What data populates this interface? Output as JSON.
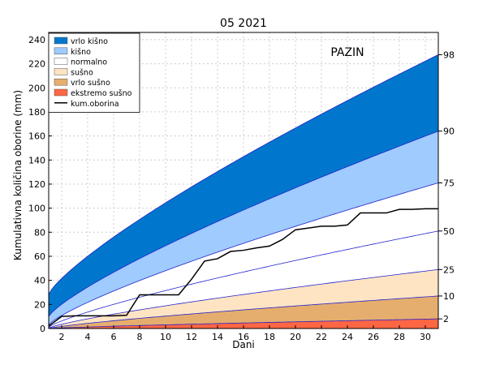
{
  "chart_data": {
    "type": "area",
    "title": "05 2021",
    "station_label": "PAZIN",
    "xlabel": "Dani",
    "ylabel": "Kumulativna količina oborine (mm)",
    "xlim": [
      1,
      31
    ],
    "ylim": [
      0,
      246
    ],
    "x_ticks": [
      2,
      4,
      6,
      8,
      10,
      12,
      14,
      16,
      18,
      20,
      22,
      24,
      26,
      28,
      30
    ],
    "y_ticks": [
      0,
      20,
      40,
      60,
      80,
      100,
      120,
      140,
      160,
      180,
      200,
      220,
      240
    ],
    "grid": true,
    "legend_position": "top-left",
    "right_axis_labels": [
      {
        "label": "98",
        "value": 227.5
      },
      {
        "label": "90",
        "value": 164
      },
      {
        "label": "75",
        "value": 121
      },
      {
        "label": "50",
        "value": 81
      },
      {
        "label": "25",
        "value": 49
      },
      {
        "label": "10",
        "value": 27
      },
      {
        "label": "2",
        "value": 8
      }
    ],
    "day_one_percentiles": {
      "p2": 0,
      "p10": 0,
      "p25": 0.3,
      "p50": 1,
      "p75": 3,
      "p90": 10,
      "p98": 28.5
    },
    "bands": [
      {
        "name": "vrlo kišno",
        "color": "#0077cc",
        "lower": "p90",
        "upper": "p98"
      },
      {
        "name": "kišno",
        "color": "#9fcbff",
        "lower": "p75",
        "upper": "p90"
      },
      {
        "name": "normalno",
        "color": "#ffffff",
        "lower": "p25",
        "upper": "p75"
      },
      {
        "name": "sušno",
        "color": "#ffe4c4",
        "lower": "p10",
        "upper": "p25"
      },
      {
        "name": "vrlo sušno",
        "color": "#e6ae6e",
        "lower": "p2",
        "upper": "p10"
      },
      {
        "name": "ekstremo sušno",
        "color": "#ff6644",
        "lower": "zero",
        "upper": "p2"
      }
    ],
    "series": [
      {
        "name": "kum.oborina",
        "color": "#000000",
        "x": [
          1,
          2,
          3,
          4,
          5,
          6,
          7,
          8,
          9,
          10,
          11,
          12,
          13,
          14,
          15,
          16,
          17,
          18,
          19,
          20,
          21,
          22,
          23,
          24,
          25,
          26,
          27,
          28,
          29,
          30,
          31
        ],
        "values": [
          2,
          10,
          10.5,
          10.5,
          10.5,
          10.5,
          11,
          28,
          28,
          28,
          28,
          41,
          56,
          58,
          64,
          65,
          67,
          68.5,
          74,
          82,
          83.5,
          85,
          85,
          86,
          96,
          96,
          96,
          99,
          99,
          99.5,
          99.5
        ]
      }
    ]
  }
}
